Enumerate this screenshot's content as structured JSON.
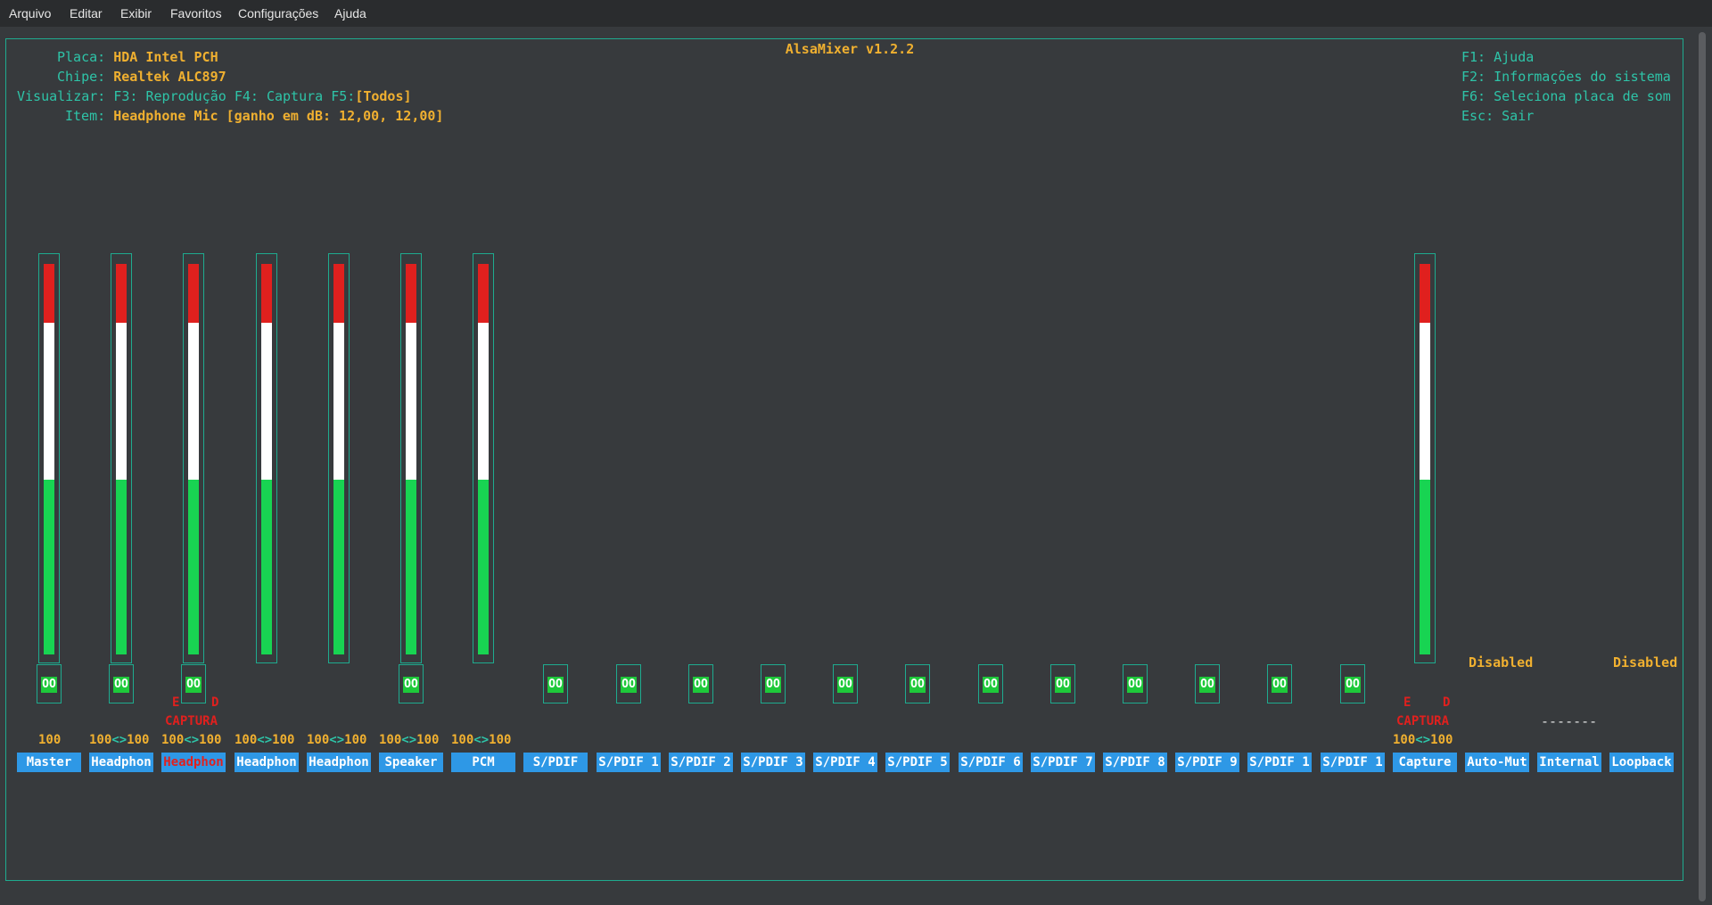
{
  "menubar": [
    "Arquivo",
    "Editar",
    "Exibir",
    "Favoritos",
    "Configurações",
    "Ajuda"
  ],
  "title": "AlsaMixer v1.2.2",
  "info": {
    "card_label": "Placa:",
    "card": "HDA Intel PCH",
    "chip_label": "Chipe:",
    "chip": "Realtek ALC897",
    "view_label": "Visualizar:",
    "view_f3": "F3: Reprodução",
    "view_f4": "F4: Captura",
    "view_f5": "F5:",
    "view_all": "[Todos]",
    "item_label": "Item:",
    "item": "Headphone Mic [ganho em dB: 12,00, 12,00]"
  },
  "help": [
    "F1: Ajuda",
    "F2: Informações do sistema",
    "F6: Seleciona placa de som",
    "Esc: Sair"
  ],
  "channels": [
    {
      "label": "Master",
      "vol_left": "100",
      "vol_right": "",
      "mute": "OO"
    },
    {
      "label": "Headphon",
      "vol_left": "100",
      "vol_right": "100",
      "mute": "OO"
    },
    {
      "label": "Headphon",
      "vol_left": "100",
      "vol_right": "100",
      "mute": "OO",
      "selected": true,
      "capture": "CAPTURA",
      "cap_left": "E",
      "cap_right": "D"
    },
    {
      "label": "Headphon",
      "vol_left": "100",
      "vol_right": "100"
    },
    {
      "label": "Headphon",
      "vol_left": "100",
      "vol_right": "100"
    },
    {
      "label": "Speaker",
      "vol_left": "100",
      "vol_right": "100",
      "mute": "OO"
    },
    {
      "label": "PCM",
      "vol_left": "100",
      "vol_right": "100"
    },
    {
      "label": "S/PDIF",
      "mute": "OO"
    },
    {
      "label": "S/PDIF 1",
      "mute": "OO"
    },
    {
      "label": "S/PDIF 2",
      "mute": "OO"
    },
    {
      "label": "S/PDIF 3",
      "mute": "OO"
    },
    {
      "label": "S/PDIF 4",
      "mute": "OO"
    },
    {
      "label": "S/PDIF 5",
      "mute": "OO"
    },
    {
      "label": "S/PDIF 6",
      "mute": "OO"
    },
    {
      "label": "S/PDIF 7",
      "mute": "OO"
    },
    {
      "label": "S/PDIF 8",
      "mute": "OO"
    },
    {
      "label": "S/PDIF 9",
      "mute": "OO"
    },
    {
      "label": "S/PDIF 1",
      "mute": "OO"
    },
    {
      "label": "S/PDIF 1",
      "mute": "OO"
    },
    {
      "label": "Capture",
      "vol_left": "100",
      "vol_right": "100",
      "capture": "CAPTURA",
      "cap_left": "E",
      "cap_right": "D"
    },
    {
      "label": "Auto-Mut",
      "status": "Disabled"
    },
    {
      "label": "Internal",
      "status": "-------"
    },
    {
      "label": "Loopback",
      "status": "Disabled"
    }
  ],
  "colors": {
    "accent": "#1eab8f",
    "label_bg": "#2e98e6",
    "bar_red": "#e0201e",
    "bar_white": "#ffffff",
    "bar_green": "#18d452",
    "text_yellow": "#f0b030"
  }
}
